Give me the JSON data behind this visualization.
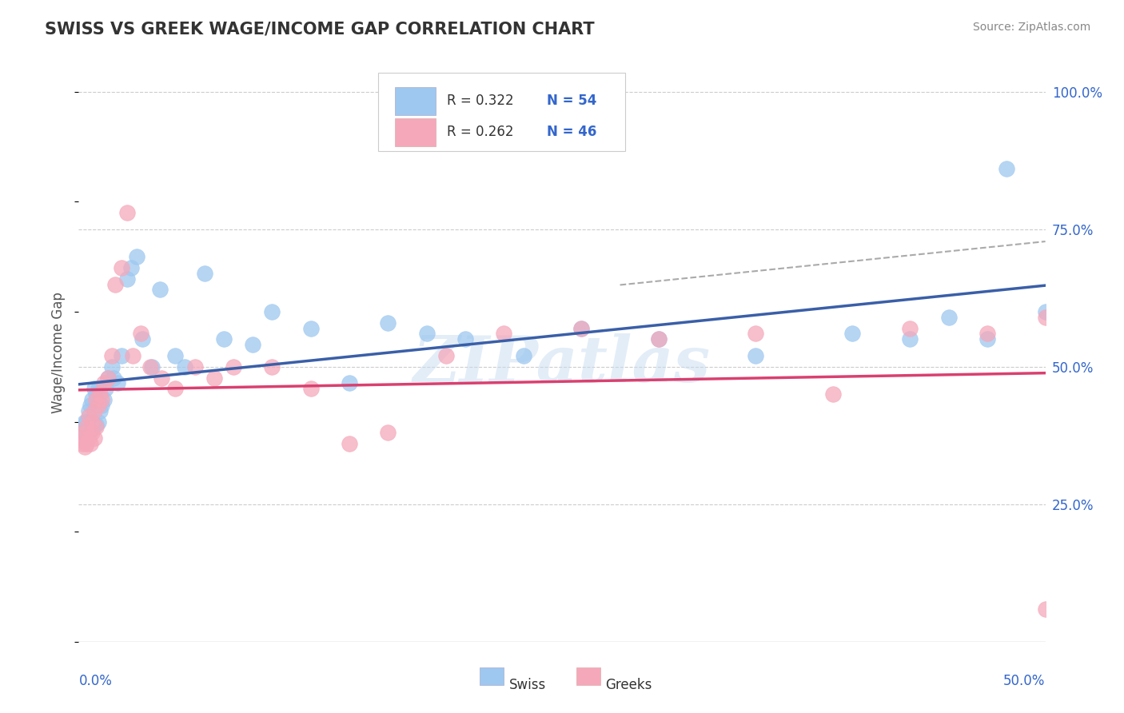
{
  "title": "SWISS VS GREEK WAGE/INCOME GAP CORRELATION CHART",
  "source": "Source: ZipAtlas.com",
  "ylabel": "Wage/Income Gap",
  "swiss_color": "#9EC8F0",
  "greek_color": "#F5A8BA",
  "swiss_line_color": "#3A5FA8",
  "greek_line_color": "#D94070",
  "dash_color": "#AAAAAA",
  "watermark_color": "#C8DCF0",
  "x_min": 0.0,
  "x_max": 0.5,
  "y_min": 0.0,
  "y_max": 1.05,
  "y_ticks": [
    0.25,
    0.5,
    0.75,
    1.0
  ],
  "y_tick_labels": [
    "25.0%",
    "50.0%",
    "75.0%",
    "100.0%"
  ],
  "swiss_x": [
    0.001,
    0.002,
    0.003,
    0.003,
    0.004,
    0.004,
    0.005,
    0.005,
    0.006,
    0.006,
    0.007,
    0.007,
    0.008,
    0.008,
    0.009,
    0.009,
    0.01,
    0.01,
    0.011,
    0.012,
    0.013,
    0.014,
    0.015,
    0.017,
    0.018,
    0.02,
    0.022,
    0.025,
    0.027,
    0.03,
    0.033,
    0.038,
    0.042,
    0.05,
    0.055,
    0.065,
    0.075,
    0.09,
    0.1,
    0.12,
    0.14,
    0.16,
    0.18,
    0.2,
    0.23,
    0.26,
    0.3,
    0.35,
    0.4,
    0.43,
    0.45,
    0.47,
    0.48,
    0.5
  ],
  "swiss_y": [
    0.385,
    0.38,
    0.38,
    0.4,
    0.385,
    0.4,
    0.39,
    0.42,
    0.385,
    0.43,
    0.4,
    0.44,
    0.395,
    0.46,
    0.395,
    0.45,
    0.4,
    0.46,
    0.42,
    0.43,
    0.44,
    0.46,
    0.48,
    0.5,
    0.48,
    0.47,
    0.52,
    0.66,
    0.68,
    0.7,
    0.55,
    0.5,
    0.64,
    0.52,
    0.5,
    0.67,
    0.55,
    0.54,
    0.6,
    0.57,
    0.47,
    0.58,
    0.56,
    0.55,
    0.52,
    0.57,
    0.55,
    0.52,
    0.56,
    0.55,
    0.59,
    0.55,
    0.86,
    0.6
  ],
  "greek_x": [
    0.001,
    0.002,
    0.003,
    0.003,
    0.004,
    0.004,
    0.005,
    0.005,
    0.006,
    0.007,
    0.007,
    0.008,
    0.008,
    0.009,
    0.009,
    0.01,
    0.011,
    0.012,
    0.013,
    0.015,
    0.017,
    0.019,
    0.022,
    0.025,
    0.028,
    0.032,
    0.037,
    0.043,
    0.05,
    0.06,
    0.07,
    0.08,
    0.1,
    0.12,
    0.14,
    0.16,
    0.19,
    0.22,
    0.26,
    0.3,
    0.35,
    0.39,
    0.43,
    0.47,
    0.5,
    0.5
  ],
  "greek_y": [
    0.37,
    0.36,
    0.355,
    0.38,
    0.36,
    0.39,
    0.37,
    0.41,
    0.36,
    0.4,
    0.38,
    0.42,
    0.37,
    0.44,
    0.39,
    0.43,
    0.45,
    0.44,
    0.47,
    0.48,
    0.52,
    0.65,
    0.68,
    0.78,
    0.52,
    0.56,
    0.5,
    0.48,
    0.46,
    0.5,
    0.48,
    0.5,
    0.5,
    0.46,
    0.36,
    0.38,
    0.52,
    0.56,
    0.57,
    0.55,
    0.56,
    0.45,
    0.57,
    0.56,
    0.06,
    0.59
  ]
}
